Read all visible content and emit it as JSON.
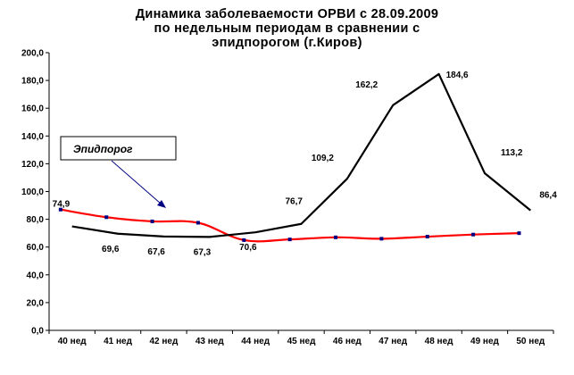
{
  "chart_data": {
    "type": "line",
    "title_lines": [
      "Динамика заболеваемости ОРВИ с 28.09.2009",
      "по недельным периодам в сравнении с",
      "эпидпорогом (г.Киров)"
    ],
    "categories": [
      "40 нед",
      "41 нед",
      "42 нед",
      "43 нед",
      "44 нед",
      "45 нед",
      "46 нед",
      "47 нед",
      "48 нед",
      "49 нед",
      "50 нед"
    ],
    "ylim": [
      0,
      200
    ],
    "y_ticks": [
      "0,0",
      "20,0",
      "40,0",
      "60,0",
      "80,0",
      "100,0",
      "120,0",
      "140,0",
      "160,0",
      "180,0",
      "200,0"
    ],
    "grid": false,
    "series": [
      {
        "color": "#000000",
        "x": [
          0.5,
          1.5,
          2.5,
          3.5,
          4.5,
          5.5,
          6.5,
          7.5,
          8.5,
          9.5,
          10.5
        ],
        "values": [
          74.9,
          69.6,
          67.6,
          67.3,
          70.6,
          76.7,
          109.2,
          162.2,
          184.6,
          113.2,
          86.4
        ],
        "labels": [
          "74,9",
          "69,6",
          "67,6",
          "67,3",
          "70,6",
          "76,7",
          "109,2",
          "162,2",
          "184,6",
          "113,2",
          "86,4"
        ]
      },
      {
        "name": "Эпидпорог",
        "color": "#ff0000",
        "marker_color": "#000080",
        "x": [
          0.25,
          1.25,
          2.25,
          3.25,
          4.25,
          5.25,
          6.25,
          7.25,
          8.25,
          9.25,
          10.25
        ],
        "values": [
          87.0,
          81.5,
          78.5,
          77.5,
          65.0,
          65.5,
          67.0,
          66.0,
          67.5,
          69.0,
          70.0
        ]
      }
    ],
    "callout": {
      "text": "Эпидпорог"
    }
  }
}
